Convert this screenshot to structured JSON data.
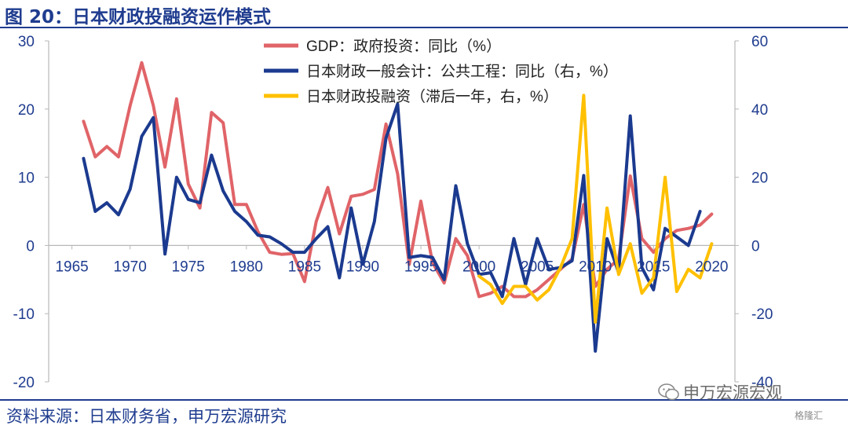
{
  "figure_title": "图 20：日本财政投融资运作模式",
  "source_note": "资料来源：日本财务省，申万宏源研究",
  "watermark": "申万宏源宏观",
  "watermark2": "格隆汇",
  "colors": {
    "gdp": "#e06468",
    "public_works": "#1b3a8f",
    "filp": "#ffc000",
    "title": "#1f3c8f",
    "axis_text": "#1f3c8f"
  },
  "chart_data": {
    "type": "line",
    "legend_position": "top-center",
    "grid": false,
    "x_ticks": [
      1965,
      1970,
      1975,
      1980,
      1985,
      1990,
      1995,
      2000,
      2005,
      2010,
      2015,
      2020
    ],
    "xlim": [
      1963,
      2022
    ],
    "y_left": {
      "lim": [
        -20,
        30
      ],
      "ticks": [
        -20,
        -10,
        0,
        10,
        20,
        30
      ]
    },
    "y_right": {
      "lim": [
        -40,
        60
      ],
      "ticks": [
        -40,
        -20,
        0,
        20,
        40,
        60
      ]
    },
    "series": [
      {
        "name": "GDP：政府投资：同比（%）",
        "axis": "left",
        "x": [
          1966,
          1967,
          1968,
          1969,
          1970,
          1971,
          1972,
          1973,
          1974,
          1975,
          1976,
          1977,
          1978,
          1979,
          1980,
          1981,
          1982,
          1983,
          1984,
          1985,
          1986,
          1987,
          1988,
          1989,
          1990,
          1991,
          1992,
          1993,
          1994,
          1995,
          1996,
          1997,
          1998,
          1999,
          2000,
          2001,
          2002,
          2003,
          2004,
          2005,
          2006,
          2007,
          2008,
          2009,
          2010,
          2011,
          2012,
          2013,
          2014,
          2015,
          2016,
          2017,
          2018,
          2019,
          2020
        ],
        "values": [
          18.2,
          13.0,
          14.5,
          13.0,
          20.5,
          26.8,
          20.5,
          11.5,
          21.5,
          9.0,
          5.5,
          19.5,
          18.0,
          6.0,
          6.0,
          2.0,
          -1.0,
          -1.3,
          -1.2,
          -5.3,
          3.5,
          8.5,
          1.7,
          7.2,
          7.5,
          8.2,
          17.8,
          10.5,
          -2.8,
          6.5,
          -2.5,
          -5.5,
          1.0,
          -1.5,
          -7.5,
          -7.0,
          -6.0,
          -7.5,
          -7.5,
          -6.5,
          -5.0,
          -3.5,
          -2.0,
          6.0,
          -6.0,
          -3.5,
          -2.0,
          10.2,
          1.0,
          -1.0,
          1.0,
          2.2,
          2.5,
          3.0,
          4.6
        ]
      },
      {
        "name": "日本财政一般会计：公共工程：同比（右，%）",
        "axis": "right",
        "x": [
          1966,
          1967,
          1968,
          1969,
          1970,
          1971,
          1972,
          1973,
          1974,
          1975,
          1976,
          1977,
          1978,
          1979,
          1980,
          1981,
          1982,
          1983,
          1984,
          1985,
          1986,
          1987,
          1988,
          1989,
          1990,
          1991,
          1992,
          1993,
          1994,
          1995,
          1996,
          1997,
          1998,
          1999,
          2000,
          2001,
          2002,
          2003,
          2004,
          2005,
          2006,
          2007,
          2008,
          2009,
          2010,
          2011,
          2012,
          2013,
          2014,
          2015,
          2016,
          2017,
          2018,
          2019
        ],
        "values": [
          25.5,
          10.0,
          12.5,
          9.0,
          16.5,
          32.0,
          37.5,
          -2.5,
          20.0,
          13.5,
          12.5,
          26.5,
          16.0,
          10.0,
          7.0,
          3.0,
          2.5,
          0.5,
          -2.0,
          -2.0,
          2.0,
          5.5,
          -9.5,
          11.0,
          -5.5,
          7.0,
          31.5,
          41.5,
          -3.5,
          -3.0,
          -3.5,
          -10.0,
          17.5,
          0.5,
          -8.5,
          -8.0,
          -15.0,
          2.0,
          -11.5,
          2.0,
          -7.0,
          -6.5,
          -4.5,
          20.5,
          -31.0,
          2.0,
          -8.0,
          38.0,
          -6.5,
          -13.0,
          5.0,
          2.5,
          0.0,
          10.0
        ]
      },
      {
        "name": "日本财政投融资（滞后一年，右，%）",
        "axis": "right",
        "x": [
          2000,
          2001,
          2002,
          2003,
          2004,
          2005,
          2006,
          2007,
          2008,
          2009,
          2010,
          2011,
          2012,
          2013,
          2014,
          2015,
          2016,
          2017,
          2018,
          2019,
          2020
        ],
        "values": [
          -9.0,
          -11.5,
          -17.0,
          -12.0,
          -12.0,
          -16.0,
          -13.0,
          -6.5,
          2.0,
          44.0,
          -22.5,
          11.0,
          -8.5,
          0.5,
          -14.0,
          -9.5,
          20.0,
          -13.5,
          -7.0,
          -9.5,
          0.5
        ]
      }
    ]
  }
}
